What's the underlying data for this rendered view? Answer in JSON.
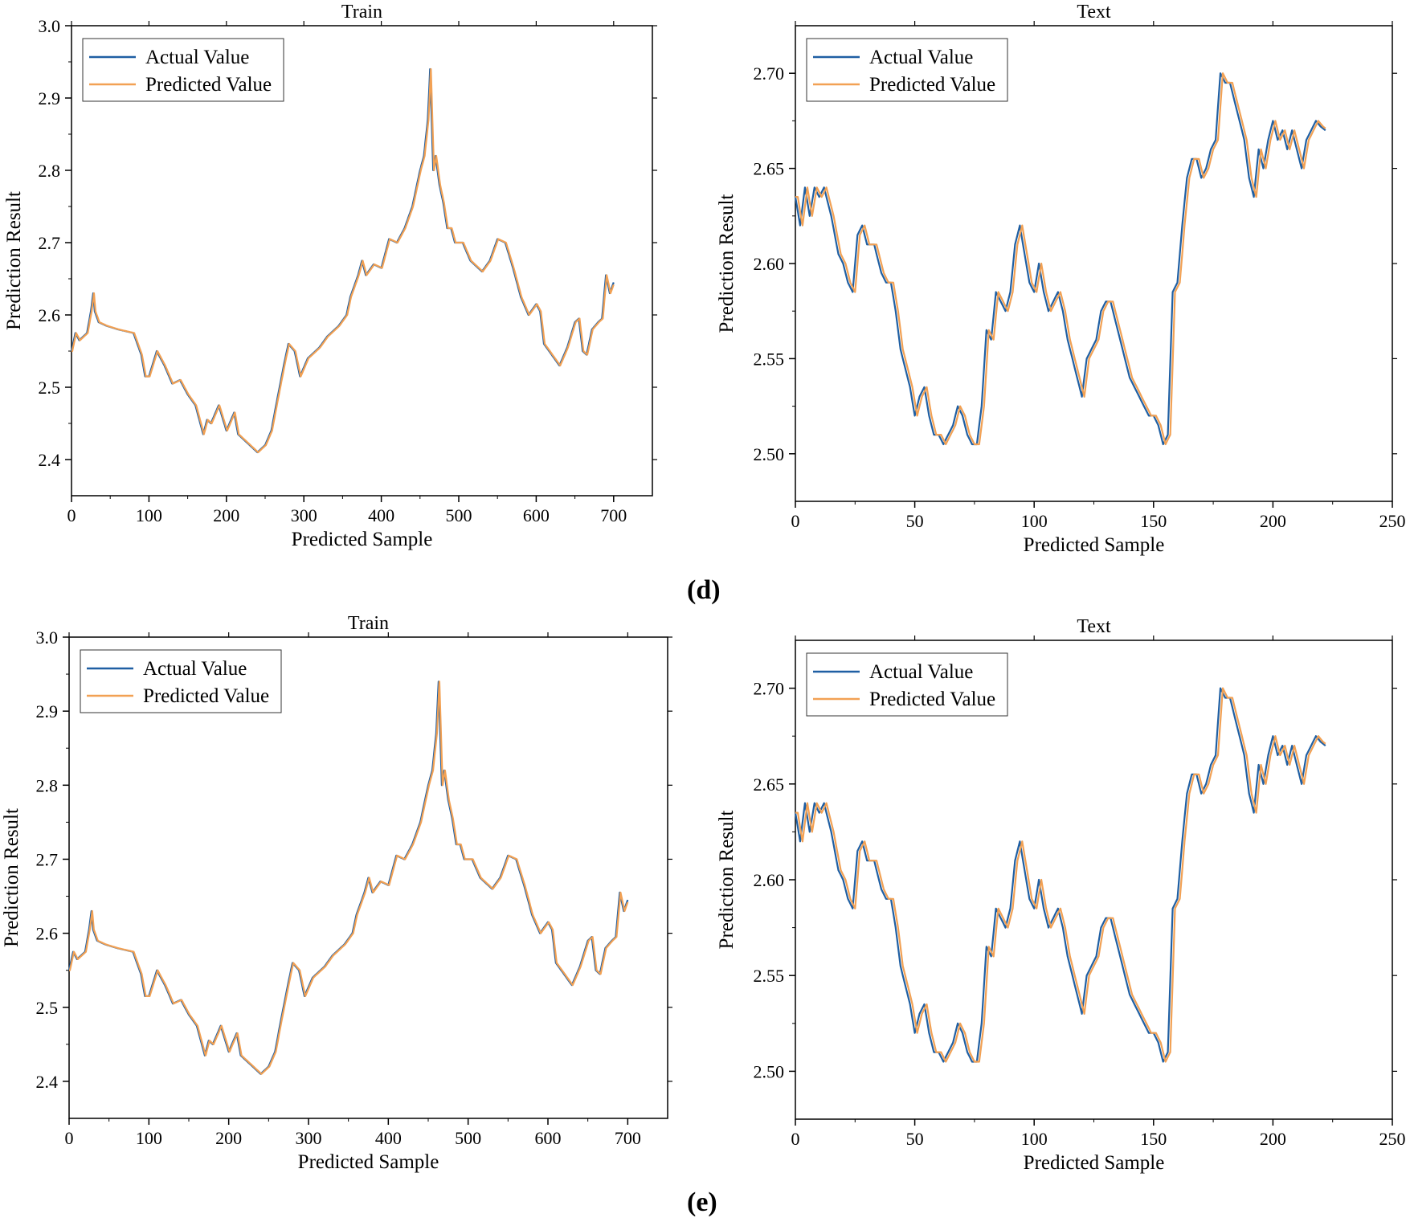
{
  "colors": {
    "actual": "#1f5fa3",
    "predicted": "#f2a154",
    "axis": "#000000",
    "background": "#ffffff"
  },
  "panels": {
    "d": {
      "label": "(d)"
    },
    "e": {
      "label": "(e)"
    }
  },
  "chart_data": [
    {
      "id": "d-train",
      "panel": "d",
      "type": "line",
      "title": "Train",
      "xlabel": "Predicted Sample",
      "ylabel": "Prediction Result",
      "xlim": [
        0,
        750
      ],
      "ylim": [
        2.35,
        3.0
      ],
      "xticks": [
        0,
        100,
        200,
        300,
        400,
        500,
        600,
        700
      ],
      "yticks": [
        2.4,
        2.5,
        2.6,
        2.7,
        2.8,
        2.9,
        3.0
      ],
      "ytick_decimals": 1,
      "legend": {
        "position": "top-left",
        "entries": [
          "Actual Value",
          "Predicted Value"
        ]
      },
      "series_ref": "train"
    },
    {
      "id": "d-test",
      "panel": "d",
      "type": "line",
      "title": "Text",
      "xlabel": "Predicted Sample",
      "ylabel": "Prediction Result",
      "xlim": [
        0,
        250
      ],
      "ylim": [
        2.475,
        2.725
      ],
      "xticks": [
        0,
        50,
        100,
        150,
        200,
        250
      ],
      "yticks": [
        2.5,
        2.55,
        2.6,
        2.65,
        2.7
      ],
      "ytick_decimals": 2,
      "legend": {
        "position": "top-left",
        "entries": [
          "Actual Value",
          "Predicted Value"
        ]
      },
      "series_ref": "test"
    },
    {
      "id": "e-train",
      "panel": "e",
      "type": "line",
      "title": "Train",
      "xlabel": "Predicted Sample",
      "ylabel": "Prediction Result",
      "xlim": [
        0,
        750
      ],
      "ylim": [
        2.35,
        3.0
      ],
      "xticks": [
        0,
        100,
        200,
        300,
        400,
        500,
        600,
        700
      ],
      "yticks": [
        2.4,
        2.5,
        2.6,
        2.7,
        2.8,
        2.9,
        3.0
      ],
      "ytick_decimals": 1,
      "legend": {
        "position": "top-left",
        "entries": [
          "Actual Value",
          "Predicted Value"
        ]
      },
      "series_ref": "train"
    },
    {
      "id": "e-test",
      "panel": "e",
      "type": "line",
      "title": "Text",
      "xlabel": "Predicted Sample",
      "ylabel": "Prediction Result",
      "xlim": [
        0,
        250
      ],
      "ylim": [
        2.475,
        2.725
      ],
      "xticks": [
        0,
        50,
        100,
        150,
        200,
        250
      ],
      "yticks": [
        2.5,
        2.55,
        2.6,
        2.65,
        2.7
      ],
      "ytick_decimals": 2,
      "legend": {
        "position": "top-left",
        "entries": [
          "Actual Value",
          "Predicted Value"
        ]
      },
      "series_ref": "test"
    }
  ],
  "series": {
    "train": {
      "length": 701,
      "predicted_lag": 1,
      "anchors": [
        [
          0,
          2.55
        ],
        [
          5,
          2.575
        ],
        [
          10,
          2.565
        ],
        [
          20,
          2.575
        ],
        [
          25,
          2.605
        ],
        [
          28,
          2.63
        ],
        [
          30,
          2.605
        ],
        [
          35,
          2.59
        ],
        [
          45,
          2.585
        ],
        [
          60,
          2.58
        ],
        [
          80,
          2.575
        ],
        [
          90,
          2.545
        ],
        [
          95,
          2.515
        ],
        [
          100,
          2.515
        ],
        [
          110,
          2.55
        ],
        [
          120,
          2.53
        ],
        [
          130,
          2.505
        ],
        [
          140,
          2.51
        ],
        [
          150,
          2.49
        ],
        [
          160,
          2.475
        ],
        [
          170,
          2.435
        ],
        [
          175,
          2.455
        ],
        [
          180,
          2.45
        ],
        [
          190,
          2.475
        ],
        [
          200,
          2.44
        ],
        [
          210,
          2.465
        ],
        [
          215,
          2.435
        ],
        [
          230,
          2.42
        ],
        [
          240,
          2.41
        ],
        [
          250,
          2.42
        ],
        [
          258,
          2.44
        ],
        [
          265,
          2.48
        ],
        [
          275,
          2.535
        ],
        [
          280,
          2.56
        ],
        [
          288,
          2.55
        ],
        [
          295,
          2.515
        ],
        [
          305,
          2.54
        ],
        [
          320,
          2.555
        ],
        [
          330,
          2.57
        ],
        [
          345,
          2.585
        ],
        [
          355,
          2.6
        ],
        [
          360,
          2.625
        ],
        [
          370,
          2.655
        ],
        [
          375,
          2.675
        ],
        [
          380,
          2.655
        ],
        [
          390,
          2.67
        ],
        [
          400,
          2.665
        ],
        [
          410,
          2.705
        ],
        [
          420,
          2.7
        ],
        [
          430,
          2.72
        ],
        [
          440,
          2.75
        ],
        [
          450,
          2.8
        ],
        [
          455,
          2.82
        ],
        [
          460,
          2.87
        ],
        [
          463,
          2.94
        ],
        [
          467,
          2.8
        ],
        [
          470,
          2.82
        ],
        [
          475,
          2.78
        ],
        [
          480,
          2.755
        ],
        [
          485,
          2.72
        ],
        [
          490,
          2.72
        ],
        [
          495,
          2.7
        ],
        [
          505,
          2.7
        ],
        [
          515,
          2.675
        ],
        [
          520,
          2.67
        ],
        [
          530,
          2.66
        ],
        [
          540,
          2.675
        ],
        [
          550,
          2.705
        ],
        [
          560,
          2.7
        ],
        [
          570,
          2.665
        ],
        [
          580,
          2.625
        ],
        [
          590,
          2.6
        ],
        [
          600,
          2.615
        ],
        [
          605,
          2.605
        ],
        [
          610,
          2.56
        ],
        [
          620,
          2.545
        ],
        [
          630,
          2.53
        ],
        [
          640,
          2.555
        ],
        [
          650,
          2.59
        ],
        [
          655,
          2.595
        ],
        [
          660,
          2.55
        ],
        [
          665,
          2.545
        ],
        [
          672,
          2.58
        ],
        [
          680,
          2.59
        ],
        [
          685,
          2.595
        ],
        [
          690,
          2.655
        ],
        [
          695,
          2.63
        ],
        [
          700,
          2.645
        ]
      ]
    },
    "test": {
      "length": 223,
      "predicted_lag": 1,
      "anchors": [
        [
          0,
          2.635
        ],
        [
          2,
          2.62
        ],
        [
          4,
          2.64
        ],
        [
          6,
          2.625
        ],
        [
          8,
          2.64
        ],
        [
          10,
          2.635
        ],
        [
          12,
          2.64
        ],
        [
          15,
          2.625
        ],
        [
          18,
          2.605
        ],
        [
          20,
          2.6
        ],
        [
          22,
          2.59
        ],
        [
          24,
          2.585
        ],
        [
          26,
          2.615
        ],
        [
          28,
          2.62
        ],
        [
          30,
          2.61
        ],
        [
          33,
          2.61
        ],
        [
          36,
          2.595
        ],
        [
          38,
          2.59
        ],
        [
          40,
          2.59
        ],
        [
          42,
          2.575
        ],
        [
          44,
          2.555
        ],
        [
          46,
          2.545
        ],
        [
          48,
          2.535
        ],
        [
          50,
          2.52
        ],
        [
          52,
          2.53
        ],
        [
          54,
          2.535
        ],
        [
          56,
          2.52
        ],
        [
          58,
          2.51
        ],
        [
          60,
          2.51
        ],
        [
          62,
          2.505
        ],
        [
          64,
          2.51
        ],
        [
          66,
          2.515
        ],
        [
          68,
          2.525
        ],
        [
          70,
          2.52
        ],
        [
          72,
          2.51
        ],
        [
          74,
          2.505
        ],
        [
          76,
          2.505
        ],
        [
          78,
          2.525
        ],
        [
          80,
          2.565
        ],
        [
          82,
          2.56
        ],
        [
          84,
          2.585
        ],
        [
          86,
          2.58
        ],
        [
          88,
          2.575
        ],
        [
          90,
          2.585
        ],
        [
          92,
          2.61
        ],
        [
          94,
          2.62
        ],
        [
          96,
          2.605
        ],
        [
          98,
          2.59
        ],
        [
          100,
          2.585
        ],
        [
          102,
          2.6
        ],
        [
          104,
          2.585
        ],
        [
          106,
          2.575
        ],
        [
          108,
          2.58
        ],
        [
          110,
          2.585
        ],
        [
          112,
          2.575
        ],
        [
          114,
          2.56
        ],
        [
          116,
          2.55
        ],
        [
          118,
          2.54
        ],
        [
          120,
          2.53
        ],
        [
          122,
          2.55
        ],
        [
          124,
          2.555
        ],
        [
          126,
          2.56
        ],
        [
          128,
          2.575
        ],
        [
          130,
          2.58
        ],
        [
          132,
          2.58
        ],
        [
          134,
          2.57
        ],
        [
          136,
          2.56
        ],
        [
          138,
          2.55
        ],
        [
          140,
          2.54
        ],
        [
          142,
          2.535
        ],
        [
          144,
          2.53
        ],
        [
          146,
          2.525
        ],
        [
          148,
          2.52
        ],
        [
          150,
          2.52
        ],
        [
          152,
          2.515
        ],
        [
          154,
          2.505
        ],
        [
          156,
          2.51
        ],
        [
          158,
          2.585
        ],
        [
          160,
          2.59
        ],
        [
          162,
          2.62
        ],
        [
          164,
          2.645
        ],
        [
          166,
          2.655
        ],
        [
          168,
          2.655
        ],
        [
          170,
          2.645
        ],
        [
          172,
          2.65
        ],
        [
          174,
          2.66
        ],
        [
          176,
          2.665
        ],
        [
          178,
          2.7
        ],
        [
          180,
          2.695
        ],
        [
          182,
          2.695
        ],
        [
          184,
          2.685
        ],
        [
          186,
          2.675
        ],
        [
          188,
          2.665
        ],
        [
          190,
          2.645
        ],
        [
          192,
          2.635
        ],
        [
          194,
          2.66
        ],
        [
          196,
          2.65
        ],
        [
          198,
          2.665
        ],
        [
          200,
          2.675
        ],
        [
          202,
          2.665
        ],
        [
          204,
          2.67
        ],
        [
          206,
          2.66
        ],
        [
          208,
          2.67
        ],
        [
          210,
          2.66
        ],
        [
          212,
          2.65
        ],
        [
          214,
          2.665
        ],
        [
          216,
          2.67
        ],
        [
          218,
          2.675
        ],
        [
          220,
          2.672
        ],
        [
          222,
          2.67
        ]
      ]
    }
  }
}
